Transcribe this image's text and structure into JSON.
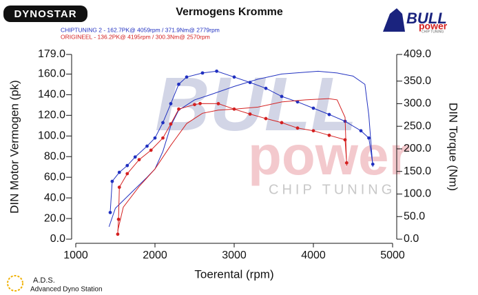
{
  "chart_data": {
    "type": "line",
    "title": "Vermogens Kromme",
    "runs": [
      "CHIPTUNING 2  - 162.7PK@ 4059rpm / 371.9Nm@ 2779rpm",
      "ORIGINEEL  - 136.2PK@ 4195rpm / 300.3Nm@ 2570rpm"
    ],
    "run_colors": [
      "#2030c0",
      "#d42020"
    ],
    "xlabel": "Toerental (rpm)",
    "ylabel": "DIN Motor Vermogen (pk)",
    "y2label": "DIN Torque (Nm)",
    "xlim": [
      1000,
      5000
    ],
    "xticks": [
      1000,
      2000,
      3000,
      4000,
      5000
    ],
    "ylim": [
      0,
      179
    ],
    "yticks": [
      {
        "value": 0,
        "label": "0.0"
      },
      {
        "value": 20,
        "label": "20.0"
      },
      {
        "value": 40,
        "label": "40.0"
      },
      {
        "value": 60,
        "label": "60.0"
      },
      {
        "value": 80,
        "label": "80.0"
      },
      {
        "value": 100,
        "label": "100.0"
      },
      {
        "value": 120,
        "label": "120.0"
      },
      {
        "value": 140,
        "label": "140.0"
      },
      {
        "value": 160,
        "label": "160.0"
      },
      {
        "value": 179,
        "label": "179.0"
      }
    ],
    "y2lim": [
      0,
      409
    ],
    "y2ticks": [
      {
        "value": 0,
        "label": "0.0"
      },
      {
        "value": 50,
        "label": "50.0"
      },
      {
        "value": 100,
        "label": "100.0"
      },
      {
        "value": 150,
        "label": "150.0"
      },
      {
        "value": 200,
        "label": "200.0"
      },
      {
        "value": 250,
        "label": "250.0"
      },
      {
        "value": 300,
        "label": "300.0"
      },
      {
        "value": 350,
        "label": "350.0"
      },
      {
        "value": 409,
        "label": "409.0"
      }
    ],
    "series": [
      {
        "color": "#2030c0",
        "axis": "y",
        "markers": false,
        "x": [
          1420,
          1500,
          1700,
          1900,
          2000,
          2100,
          2200,
          2300,
          2500,
          2700,
          3000,
          3300,
          3600,
          4059,
          4300,
          4500,
          4650,
          4700,
          4750
        ],
        "values": [
          12,
          30,
          45,
          60,
          68,
          85,
          110,
          125,
          135,
          140,
          148,
          155,
          160,
          162.7,
          161,
          158,
          150,
          120,
          70
        ]
      },
      {
        "color": "#2030c0",
        "axis": "y2",
        "markers": true,
        "x": [
          1435,
          1460,
          1550,
          1650,
          1750,
          1900,
          2000,
          2100,
          2200,
          2300,
          2400,
          2600,
          2779,
          3000,
          3200,
          3400,
          3600,
          3800,
          4000,
          4200,
          4400,
          4600,
          4700,
          4750
        ],
        "values": [
          59,
          128,
          148,
          163,
          182,
          206,
          224,
          258,
          300,
          343,
          359,
          368,
          371.9,
          359,
          347,
          334,
          316,
          304,
          290,
          276,
          261,
          240,
          224,
          166
        ]
      },
      {
        "color": "#d42020",
        "axis": "y",
        "markers": false,
        "x": [
          1530,
          1600,
          1800,
          2000,
          2200,
          2400,
          2600,
          2800,
          3000,
          3300,
          3600,
          3900,
          4195,
          4300,
          4400,
          4420
        ],
        "values": [
          8,
          31,
          51,
          68,
          91,
          112,
          122,
          125,
          126,
          128,
          133,
          135,
          136.2,
          135,
          118,
          71
        ]
      },
      {
        "color": "#d42020",
        "axis": "y2",
        "markers": true,
        "x": [
          1530,
          1540,
          1550,
          1650,
          1800,
          1950,
          2100,
          2200,
          2300,
          2500,
          2570,
          2800,
          3000,
          3200,
          3400,
          3600,
          3800,
          4000,
          4200,
          4400,
          4420
        ],
        "values": [
          11,
          44,
          115,
          145,
          176,
          197,
          224,
          255,
          288,
          298,
          300.3,
          300,
          288,
          277,
          267,
          258,
          246,
          240,
          230,
          220,
          169
        ]
      }
    ]
  },
  "logos": {
    "dynostar": "DYNOSTAR",
    "bull": "BULL",
    "power": "power",
    "chip": "CHIP TUNING",
    "ads": "A.D.S.",
    "ads_full": "Advanced Dyno Station"
  }
}
